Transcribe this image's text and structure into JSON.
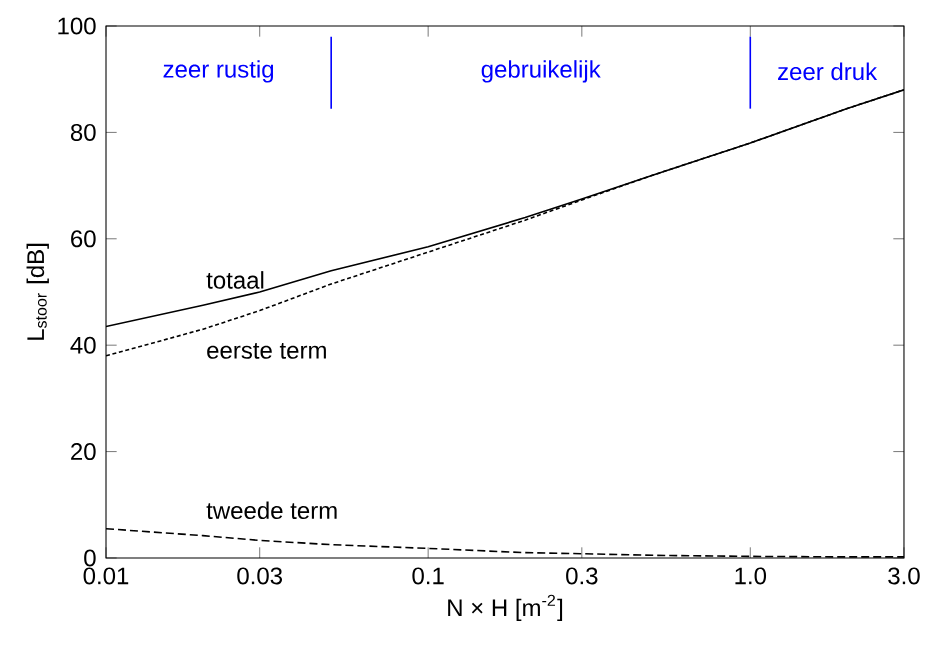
{
  "chart_data": {
    "type": "line",
    "xlabel": "N × H  [m$^{-2}$]",
    "ylabel": "L$_{stoor}$ [dB]",
    "x": [
      0.01,
      0.02,
      0.03,
      0.05,
      0.1,
      0.2,
      0.3,
      0.5,
      1.0,
      2.0,
      3.0
    ],
    "series": [
      {
        "name": "totaal",
        "color": "#000000",
        "line_style": "solid",
        "values": [
          43.5,
          47.5,
          50,
          54,
          58.5,
          64,
          67.5,
          72,
          78,
          84.5,
          88
        ]
      },
      {
        "name": "eerste term",
        "color": "#000000",
        "line_style": "dotted",
        "values": [
          38,
          43,
          46.5,
          51.5,
          57.5,
          63.5,
          67.3,
          72,
          78,
          84.5,
          88
        ]
      },
      {
        "name": "tweede term",
        "color": "#000000",
        "line_style": "dashed",
        "values": [
          5.5,
          4.2,
          3.3,
          2.5,
          1.8,
          1.0,
          0.8,
          0.5,
          0.3,
          0.2,
          0.2
        ]
      }
    ],
    "log": "x",
    "grid": false,
    "legend": false,
    "marker": "none",
    "xlim": [
      0.01,
      3.0
    ],
    "ylim": [
      0,
      100
    ],
    "xticks": [
      0.01,
      0.03,
      0.1,
      0.3,
      {
        "value": 1.0,
        "label": "1.0"
      },
      {
        "value": 3.0,
        "label": "3.0"
      }
    ],
    "yticks": [
      0,
      20,
      40,
      60,
      80,
      100
    ],
    "ref_lines": [
      {
        "axis": "x",
        "value": 0.05,
        "color": "#0000ff"
      },
      {
        "axis": "x",
        "value": 1.0,
        "color": "#0000ff"
      }
    ],
    "annotations": [
      "zeer rustig",
      "gebruikelijk",
      "zeer druk"
    ]
  }
}
